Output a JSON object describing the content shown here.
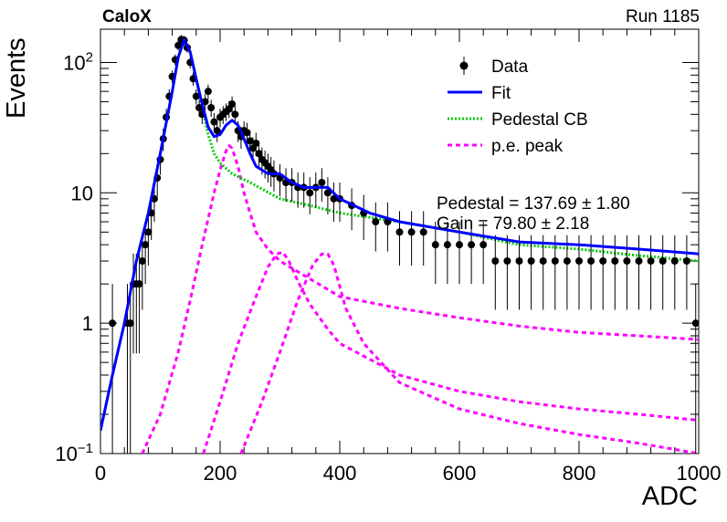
{
  "header": {
    "experiment": "CaloX",
    "run": "Run 1185"
  },
  "chart_data": {
    "type": "scatter",
    "xlabel": "ADC",
    "ylabel": "Events",
    "xlim": [
      0,
      1000
    ],
    "ylim": [
      0.1,
      180
    ],
    "y_scale": "log",
    "x_ticks": [
      "0",
      "200",
      "400",
      "600",
      "800",
      "1000"
    ],
    "y_ticks": [
      {
        "value": 0.1,
        "label": "10",
        "sup": "−1"
      },
      {
        "value": 1,
        "label": "1",
        "sup": ""
      },
      {
        "value": 10,
        "label": "10",
        "sup": ""
      },
      {
        "value": 100,
        "label": "10",
        "sup": "2"
      }
    ],
    "legend_position": "top-right",
    "legend": [
      {
        "label": "Data",
        "style": "marker",
        "color": "#000000"
      },
      {
        "label": "Fit",
        "style": "solid",
        "color": "#0000ff"
      },
      {
        "label": "Pedestal CB",
        "style": "dotted",
        "color": "#00cc00"
      },
      {
        "label": "p.e. peak",
        "style": "dashed",
        "color": "#ff00ff"
      }
    ],
    "annotations": [
      "Pedestal = 137.69 ± 1.80",
      "Gain = 79.80 ± 2.18"
    ],
    "data": {
      "x": [
        20,
        45,
        50,
        55,
        60,
        65,
        70,
        75,
        80,
        85,
        90,
        95,
        100,
        105,
        110,
        115,
        120,
        125,
        130,
        135,
        140,
        145,
        150,
        155,
        160,
        165,
        170,
        175,
        180,
        185,
        190,
        195,
        200,
        205,
        210,
        215,
        220,
        225,
        230,
        235,
        240,
        245,
        250,
        255,
        260,
        265,
        270,
        275,
        280,
        285,
        290,
        300,
        310,
        320,
        330,
        340,
        350,
        360,
        370,
        380,
        390,
        400,
        420,
        440,
        460,
        480,
        500,
        520,
        540,
        560,
        580,
        600,
        620,
        640,
        660,
        680,
        700,
        720,
        740,
        760,
        780,
        800,
        820,
        840,
        860,
        880,
        900,
        920,
        940,
        960,
        980,
        995
      ],
      "y": [
        1,
        1,
        1,
        2,
        2,
        2,
        3,
        4,
        5,
        7,
        9,
        13,
        18,
        26,
        38,
        55,
        78,
        105,
        135,
        150,
        148,
        130,
        100,
        75,
        55,
        45,
        40,
        50,
        60,
        45,
        35,
        30,
        38,
        40,
        42,
        44,
        48,
        40,
        30,
        27,
        30,
        29,
        25,
        22,
        24,
        20,
        18,
        17,
        16,
        15,
        14,
        13,
        12,
        12,
        11,
        11,
        10,
        11,
        12,
        10,
        9,
        9,
        8,
        7,
        6,
        6,
        5,
        5,
        5,
        4,
        4,
        4,
        4,
        4,
        3,
        3,
        3,
        3,
        3,
        3,
        3,
        3,
        3,
        3,
        3,
        3,
        3,
        3,
        3,
        3,
        3,
        1
      ]
    },
    "fit": {
      "x": [
        0,
        20,
        40,
        60,
        80,
        100,
        120,
        130,
        140,
        150,
        160,
        170,
        180,
        190,
        200,
        210,
        220,
        230,
        240,
        250,
        260,
        280,
        300,
        320,
        340,
        360,
        380,
        400,
        450,
        500,
        600,
        700,
        800,
        900,
        1000
      ],
      "y": [
        0.15,
        0.4,
        1,
        3,
        7,
        20,
        60,
        110,
        150,
        120,
        75,
        48,
        32,
        27,
        28,
        33,
        36,
        33,
        26,
        20,
        16,
        14,
        14,
        12,
        11,
        11,
        11,
        9,
        7,
        6,
        5,
        4.2,
        4,
        3.7,
        3.4
      ]
    },
    "pedestal_cb": {
      "x": [
        0,
        20,
        40,
        60,
        80,
        100,
        120,
        130,
        140,
        150,
        160,
        170,
        180,
        190,
        200,
        220,
        250,
        300,
        350,
        400,
        500,
        600,
        700,
        800,
        900,
        1000
      ],
      "y": [
        0.15,
        0.4,
        1,
        3,
        7,
        20,
        60,
        110,
        150,
        120,
        75,
        45,
        28,
        20,
        17,
        14,
        12,
        9,
        8,
        7,
        6,
        5,
        4,
        3.7,
        3.3,
        3
      ]
    },
    "pe_peaks": [
      {
        "x": [
          70,
          100,
          130,
          150,
          170,
          190,
          200,
          210,
          215,
          220,
          230,
          240,
          250,
          260,
          280,
          300,
          400,
          500,
          600,
          700,
          800,
          900,
          1000
        ],
        "y": [
          0.1,
          0.2,
          0.6,
          1.5,
          4,
          10,
          15,
          21,
          23,
          22,
          16,
          10,
          7,
          5,
          3.7,
          3,
          1.6,
          1.3,
          1.1,
          0.95,
          0.85,
          0.8,
          0.75
        ]
      },
      {
        "x": [
          172,
          200,
          230,
          260,
          280,
          295,
          305,
          315,
          330,
          350,
          380,
          400,
          500,
          600,
          700,
          800,
          900,
          1000
        ],
        "y": [
          0.1,
          0.25,
          0.7,
          1.6,
          2.7,
          3.4,
          3.5,
          3,
          2.1,
          1.4,
          0.9,
          0.7,
          0.4,
          0.3,
          0.25,
          0.22,
          0.2,
          0.18
        ]
      },
      {
        "x": [
          235,
          270,
          300,
          330,
          355,
          370,
          380,
          390,
          410,
          440,
          500,
          600,
          700,
          800,
          900,
          1000
        ],
        "y": [
          0.1,
          0.25,
          0.6,
          1.5,
          2.8,
          3.4,
          3.4,
          2.8,
          1.3,
          0.7,
          0.35,
          0.22,
          0.17,
          0.14,
          0.12,
          0.1
        ]
      }
    ]
  }
}
